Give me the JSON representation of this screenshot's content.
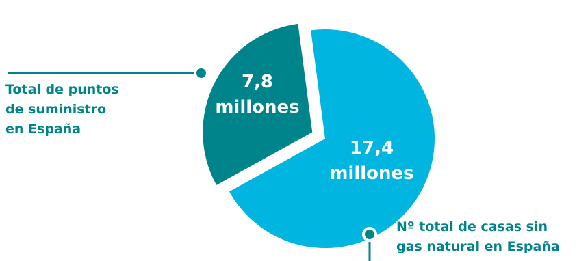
{
  "colors": {
    "slice_1": "#00848c",
    "slice_2": "#00b5e0",
    "label_text": "#00848c",
    "value_text": "#ffffff",
    "background": "#ffffff"
  },
  "labels": {
    "left": [
      "Total de puntos",
      "de suministro",
      "en España"
    ],
    "right": [
      "Nº total de casas sin",
      "gas natural en España"
    ]
  },
  "chart_data": {
    "type": "pie",
    "title": "",
    "unit": "millones",
    "slices": [
      {
        "name": "Total de puntos de suministro en España",
        "value": 7.8,
        "label_lines": [
          "7,8",
          "millones"
        ],
        "color": "#00848c",
        "exploded": true
      },
      {
        "name": "Nº total de casas sin gas natural en España",
        "value": 17.4,
        "label_lines": [
          "17,4",
          "millones"
        ],
        "color": "#00b5e0",
        "exploded": false
      }
    ]
  }
}
